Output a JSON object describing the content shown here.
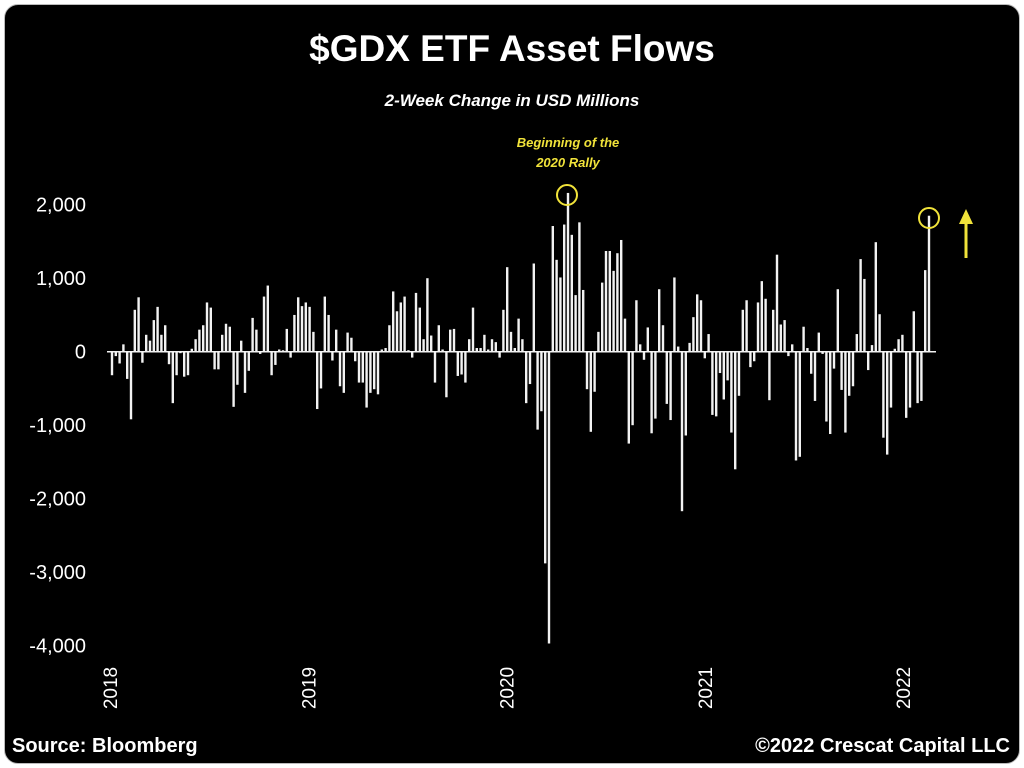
{
  "chart_data": {
    "type": "bar",
    "title": "$GDX ETF Asset Flows",
    "subtitle": "2-Week Change in USD Millions",
    "xlabel": "",
    "ylabel": "",
    "ylim": [
      -4000,
      2000
    ],
    "yticks": [
      2000,
      1000,
      0,
      -1000,
      -2000,
      -3000,
      -4000
    ],
    "ytick_labels": [
      "2,000",
      "1,000",
      "0",
      "-1,000",
      "-2,000",
      "-3,000",
      "-4,000"
    ],
    "xticks": [
      2018,
      2019,
      2020,
      2021,
      2022
    ],
    "xtick_labels": [
      "2018",
      "2019",
      "2020",
      "2021",
      "2022"
    ],
    "x_range": [
      2018.0,
      2022.15
    ],
    "grid": false,
    "annotation": {
      "lines": [
        "Beginning of the",
        "2020 Rally"
      ]
    },
    "values": [
      -320,
      -60,
      -160,
      100,
      -370,
      -920,
      570,
      740,
      -150,
      230,
      150,
      430,
      610,
      230,
      360,
      -170,
      -700,
      -320,
      -20,
      -340,
      -320,
      40,
      170,
      300,
      360,
      670,
      600,
      -240,
      -240,
      230,
      380,
      340,
      -750,
      -450,
      150,
      -560,
      -260,
      460,
      300,
      -30,
      750,
      900,
      -320,
      -180,
      30,
      20,
      310,
      -80,
      500,
      740,
      620,
      670,
      610,
      270,
      -780,
      -500,
      750,
      500,
      -120,
      300,
      -470,
      -560,
      260,
      190,
      -130,
      -420,
      -420,
      -760,
      -560,
      -510,
      -580,
      30,
      50,
      360,
      820,
      550,
      670,
      750,
      20,
      -80,
      800,
      600,
      170,
      1000,
      220,
      -420,
      360,
      30,
      -620,
      300,
      310,
      -330,
      -310,
      -420,
      170,
      600,
      50,
      50,
      230,
      30,
      170,
      130,
      -80,
      570,
      1150,
      270,
      50,
      450,
      170,
      -700,
      -440,
      1200,
      -1060,
      -810,
      -2880,
      -3970,
      1710,
      1250,
      1010,
      1730,
      2160,
      1590,
      770,
      1760,
      840,
      -510,
      -1090,
      -545,
      270,
      940,
      1370,
      1370,
      1100,
      1340,
      1520,
      450,
      -1250,
      -1000,
      700,
      100,
      -110,
      330,
      -1110,
      -910,
      850,
      360,
      -710,
      -930,
      1010,
      70,
      -2170,
      -1140,
      120,
      470,
      780,
      700,
      -90,
      240,
      -860,
      -880,
      -290,
      -650,
      -390,
      -1100,
      -1600,
      -600,
      570,
      700,
      -210,
      -130,
      670,
      960,
      720,
      -660,
      570,
      1320,
      370,
      430,
      -60,
      100,
      -1480,
      -1430,
      340,
      50,
      -300,
      -670,
      260,
      -30,
      -950,
      -1120,
      -230,
      850,
      -520,
      -1100,
      -600,
      -470,
      240,
      1260,
      990,
      -250,
      90,
      1490,
      510,
      -1170,
      -1400,
      -760,
      40,
      170,
      230,
      -900,
      -760,
      550,
      -700,
      -670,
      1110,
      1850
    ],
    "highlighted": [
      "2020 rally peak",
      "latest bar"
    ],
    "colors": {
      "bars": "#f2f2f2",
      "background": "#000000",
      "annotation": "#f1e33a"
    }
  },
  "footer": {
    "source": "Source: Bloomberg",
    "copyright": "©2022 Crescat Capital LLC"
  }
}
